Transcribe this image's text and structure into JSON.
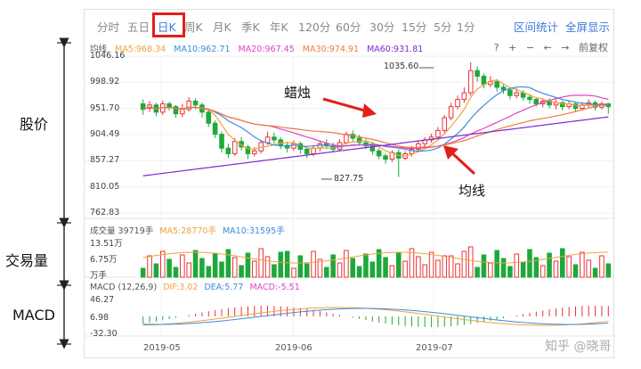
{
  "side_labels": {
    "price": "股价",
    "volume": "交易量",
    "macd": "MACD"
  },
  "tabs": [
    "分时",
    "五日",
    "日K",
    "周K",
    "月K",
    "季K",
    "年K",
    "120分",
    "60分",
    "30分",
    "15分",
    "5分",
    "1分"
  ],
  "active_tab": "日K",
  "tab_right": {
    "range_stats": "区间统计",
    "fullscreen": "全屏显示"
  },
  "ma_legend": {
    "title": "均线",
    "ma5": "MA5:968.34",
    "ma10": "MA10:962.71",
    "ma20": "MA20:967.45",
    "ma30": "MA30:974.91",
    "ma60": "MA60:931.81"
  },
  "tools": {
    "help": "?",
    "zoom_in": "+",
    "zoom_out": "−",
    "prev": "←",
    "next": "→",
    "adjust": "前复权"
  },
  "price_axis": [
    "1046.16",
    "998.92",
    "951.70",
    "904.49",
    "857.27",
    "810.05",
    "762.83"
  ],
  "annotations": {
    "high": "1035.60",
    "low": "827.75",
    "candle": "蜡烛",
    "ma": "均线"
  },
  "volume": {
    "title": "成交量 39719手",
    "ma5": "MA5:28770手",
    "ma10": "MA10:31595手",
    "axis": [
      "13.51万",
      "6.75万",
      "万手"
    ]
  },
  "macd": {
    "title": "MACD (12,26,9)",
    "dif": "DIF:3.02",
    "dea": "DEA:5.77",
    "macd": "MACD:-5.51",
    "axis": [
      "46.27",
      "6.98",
      "-32.30"
    ]
  },
  "dates": [
    "2019-05",
    "2019-06",
    "2019-07"
  ],
  "watermark": "知乎 @晓哥",
  "colors": {
    "up": "#e8333a",
    "down": "#1fa83a",
    "ma5": "#f2a33a",
    "ma10": "#3d8ae0",
    "ma20": "#e040c8",
    "ma30": "#f07a3a",
    "ma60": "#7a2ad0"
  },
  "chart_data": {
    "type": "candlestick",
    "ylim": [
      762.83,
      1046.16
    ],
    "candles": [
      [
        960,
        950,
        968,
        940
      ],
      [
        952,
        958,
        965,
        945
      ],
      [
        958,
        945,
        962,
        938
      ],
      [
        945,
        960,
        966,
        940
      ],
      [
        960,
        955,
        964,
        948
      ],
      [
        955,
        942,
        958,
        935
      ],
      [
        942,
        950,
        960,
        936
      ],
      [
        950,
        965,
        972,
        946
      ],
      [
        965,
        958,
        970,
        950
      ],
      [
        958,
        945,
        962,
        935
      ],
      [
        945,
        925,
        948,
        918
      ],
      [
        925,
        905,
        930,
        898
      ],
      [
        905,
        880,
        910,
        872
      ],
      [
        880,
        870,
        888,
        862
      ],
      [
        870,
        892,
        898,
        866
      ],
      [
        892,
        882,
        900,
        876
      ],
      [
        882,
        870,
        886,
        860
      ],
      [
        870,
        875,
        882,
        865
      ],
      [
        875,
        890,
        895,
        870
      ],
      [
        890,
        900,
        910,
        886
      ],
      [
        900,
        895,
        908,
        888
      ],
      [
        895,
        885,
        900,
        878
      ],
      [
        885,
        880,
        892,
        872
      ],
      [
        880,
        888,
        894,
        875
      ],
      [
        888,
        878,
        892,
        870
      ],
      [
        878,
        870,
        884,
        862
      ],
      [
        870,
        880,
        886,
        865
      ],
      [
        880,
        888,
        894,
        874
      ],
      [
        888,
        884,
        896,
        878
      ],
      [
        884,
        878,
        890,
        872
      ],
      [
        878,
        890,
        896,
        874
      ],
      [
        890,
        905,
        910,
        886
      ],
      [
        905,
        898,
        912,
        892
      ],
      [
        898,
        890,
        904,
        884
      ],
      [
        890,
        884,
        896,
        878
      ],
      [
        884,
        875,
        890,
        868
      ],
      [
        875,
        866,
        880,
        860
      ],
      [
        866,
        860,
        870,
        852
      ],
      [
        860,
        872,
        876,
        855
      ],
      [
        872,
        862,
        878,
        828
      ],
      [
        862,
        870,
        875,
        858
      ],
      [
        870,
        878,
        884,
        865
      ],
      [
        878,
        888,
        892,
        872
      ],
      [
        888,
        895,
        900,
        882
      ],
      [
        895,
        900,
        906,
        890
      ],
      [
        900,
        912,
        918,
        896
      ],
      [
        912,
        935,
        940,
        908
      ],
      [
        935,
        955,
        962,
        930
      ],
      [
        955,
        968,
        975,
        950
      ],
      [
        968,
        980,
        990,
        962
      ],
      [
        980,
        1020,
        1035,
        975
      ],
      [
        1020,
        1010,
        1028,
        1000
      ],
      [
        1010,
        995,
        1015,
        988
      ],
      [
        995,
        1000,
        1010,
        990
      ],
      [
        1000,
        990,
        1005,
        982
      ],
      [
        990,
        985,
        995,
        978
      ],
      [
        985,
        975,
        990,
        968
      ],
      [
        975,
        980,
        988,
        970
      ],
      [
        980,
        972,
        985,
        966
      ],
      [
        972,
        968,
        978,
        960
      ],
      [
        968,
        960,
        972,
        955
      ],
      [
        960,
        965,
        970,
        954
      ],
      [
        965,
        958,
        970,
        952
      ],
      [
        958,
        962,
        968,
        950
      ],
      [
        962,
        955,
        966,
        948
      ],
      [
        955,
        960,
        965,
        950
      ],
      [
        960,
        952,
        963,
        945
      ],
      [
        952,
        958,
        963,
        948
      ],
      [
        958,
        962,
        968,
        952
      ],
      [
        962,
        954,
        966,
        948
      ],
      [
        954,
        960,
        964,
        950
      ],
      [
        960,
        955,
        962,
        942
      ]
    ]
  }
}
